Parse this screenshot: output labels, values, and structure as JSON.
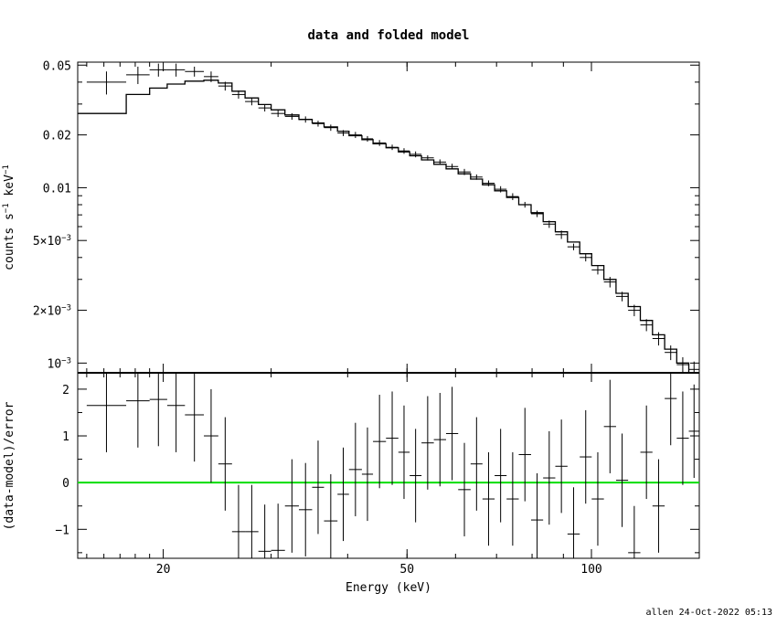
{
  "footer_text": "allen 24-Oct-2022 05:13",
  "chart_data": [
    {
      "type": "step",
      "panel": "top",
      "title": "data and folded model",
      "ylabel": "counts s^-1 keV^-1",
      "xscale": "log",
      "yscale": "log",
      "xlim": [
        14.5,
        150
      ],
      "ylim": [
        0.00088,
        0.052
      ],
      "y_tick_labels": [
        "0.05",
        "0.02",
        "0.01",
        "5×10^-3",
        "2×10^-3",
        "10^-3"
      ],
      "y_tick_values": [
        0.05,
        0.02,
        0.01,
        0.005,
        0.002,
        0.001
      ],
      "series": [
        {
          "kind": "data",
          "bins": [
            [
              15.0,
              17.4,
              0.04,
              0.006
            ],
            [
              17.4,
              19.0,
              0.044,
              0.005
            ],
            [
              19.0,
              20.3,
              0.047,
              0.004
            ],
            [
              20.3,
              21.7,
              0.047,
              0.004
            ],
            [
              21.7,
              23.3,
              0.046,
              0.003
            ],
            [
              23.3,
              24.6,
              0.043,
              0.003
            ],
            [
              24.6,
              25.9,
              0.038,
              0.0022
            ],
            [
              25.9,
              27.2,
              0.034,
              0.0018
            ],
            [
              27.2,
              28.6,
              0.031,
              0.0015
            ],
            [
              28.6,
              30.0,
              0.0285,
              0.0013
            ],
            [
              30.0,
              31.6,
              0.0265,
              0.0012
            ],
            [
              31.6,
              33.3,
              0.0255,
              0.0011
            ],
            [
              33.3,
              35.0,
              0.0245,
              0.001
            ],
            [
              35.0,
              36.6,
              0.0232,
              0.0009
            ],
            [
              36.6,
              38.5,
              0.022,
              0.0009
            ],
            [
              38.5,
              40.2,
              0.0205,
              0.0008
            ],
            [
              40.2,
              42.2,
              0.02,
              0.0008
            ],
            [
              42.2,
              44.0,
              0.019,
              0.0007
            ],
            [
              44.0,
              46.2,
              0.018,
              0.0007
            ],
            [
              46.2,
              48.4,
              0.017,
              0.0006
            ],
            [
              48.4,
              50.5,
              0.0162,
              0.0006
            ],
            [
              50.5,
              52.8,
              0.0155,
              0.0006
            ],
            [
              52.8,
              55.3,
              0.0148,
              0.0005
            ],
            [
              55.3,
              57.9,
              0.014,
              0.0005
            ],
            [
              57.9,
              60.6,
              0.0132,
              0.0005
            ],
            [
              60.6,
              63.5,
              0.0123,
              0.0005
            ],
            [
              63.5,
              66.4,
              0.0115,
              0.0004
            ],
            [
              66.4,
              69.5,
              0.0106,
              0.0004
            ],
            [
              69.5,
              72.7,
              0.0098,
              0.0004
            ],
            [
              72.7,
              76.1,
              0.0089,
              0.0004
            ],
            [
              76.1,
              79.7,
              0.008,
              0.0003
            ],
            [
              79.7,
              83.4,
              0.0071,
              0.0003
            ],
            [
              83.4,
              87.3,
              0.0062,
              0.0003
            ],
            [
              87.3,
              91.4,
              0.0054,
              0.0003
            ],
            [
              91.4,
              95.7,
              0.0046,
              0.0002
            ],
            [
              95.7,
              100.1,
              0.004,
              0.0002
            ],
            [
              100.1,
              104.8,
              0.0034,
              0.0002
            ],
            [
              104.8,
              109.7,
              0.0029,
              0.0002
            ],
            [
              109.7,
              114.8,
              0.0024,
              0.00015
            ],
            [
              114.8,
              120.2,
              0.002,
              0.00015
            ],
            [
              120.2,
              125.8,
              0.00165,
              0.00013
            ],
            [
              125.8,
              131.7,
              0.00138,
              0.00012
            ],
            [
              131.7,
              137.8,
              0.00115,
              0.00011
            ],
            [
              137.8,
              144.2,
              0.00098,
              0.0001
            ],
            [
              144.2,
              150.0,
              0.00092,
              0.0001
            ]
          ]
        },
        {
          "kind": "model",
          "bins": [
            [
              14.5,
              17.4,
              0.0265
            ],
            [
              17.4,
              19.0,
              0.034
            ],
            [
              19.0,
              20.3,
              0.037
            ],
            [
              20.3,
              21.7,
              0.039
            ],
            [
              21.7,
              23.3,
              0.0405
            ],
            [
              23.3,
              24.6,
              0.041
            ],
            [
              24.6,
              25.9,
              0.0395
            ],
            [
              25.9,
              27.2,
              0.0355
            ],
            [
              27.2,
              28.6,
              0.0325
            ],
            [
              28.6,
              30.0,
              0.0298
            ],
            [
              30.0,
              31.6,
              0.0278
            ],
            [
              31.6,
              33.3,
              0.026
            ],
            [
              33.3,
              35.0,
              0.0245
            ],
            [
              35.0,
              36.6,
              0.0234
            ],
            [
              36.6,
              38.5,
              0.0222
            ],
            [
              38.5,
              40.2,
              0.021
            ],
            [
              40.2,
              42.2,
              0.0198
            ],
            [
              42.2,
              44.0,
              0.0188
            ],
            [
              44.0,
              46.2,
              0.0178
            ],
            [
              46.2,
              48.4,
              0.0169
            ],
            [
              48.4,
              50.5,
              0.016
            ],
            [
              50.5,
              52.8,
              0.0152
            ],
            [
              52.8,
              55.3,
              0.0144
            ],
            [
              55.3,
              57.9,
              0.0136
            ],
            [
              57.9,
              60.6,
              0.0128
            ],
            [
              60.6,
              63.5,
              0.012
            ],
            [
              63.5,
              66.4,
              0.0112
            ],
            [
              66.4,
              69.5,
              0.0104
            ],
            [
              69.5,
              72.7,
              0.0096
            ],
            [
              72.7,
              76.1,
              0.0088
            ],
            [
              76.1,
              79.7,
              0.008
            ],
            [
              79.7,
              83.4,
              0.0072
            ],
            [
              83.4,
              87.3,
              0.0064
            ],
            [
              87.3,
              91.4,
              0.0056
            ],
            [
              91.4,
              95.7,
              0.0049
            ],
            [
              95.7,
              100.1,
              0.0042
            ],
            [
              100.1,
              104.8,
              0.0036
            ],
            [
              104.8,
              109.7,
              0.003
            ],
            [
              109.7,
              114.8,
              0.0025
            ],
            [
              114.8,
              120.2,
              0.0021
            ],
            [
              120.2,
              125.8,
              0.00175
            ],
            [
              125.8,
              131.7,
              0.00145
            ],
            [
              131.7,
              137.8,
              0.0012
            ],
            [
              137.8,
              144.2,
              0.001
            ],
            [
              144.2,
              150.0,
              0.00088
            ]
          ]
        }
      ]
    },
    {
      "type": "scatter",
      "panel": "bottom",
      "xlabel": "Energy (keV)",
      "ylabel": "(data-model)/error",
      "xscale": "log",
      "xlim": [
        14.5,
        150
      ],
      "ylim": [
        -1.62,
        2.35
      ],
      "y_tick_values": [
        -1,
        0,
        1,
        2
      ],
      "y_tick_labels": [
        "−1",
        "0",
        "1",
        "2"
      ],
      "x_tick_values": [
        20,
        50,
        100
      ],
      "x_tick_labels": [
        "20",
        "50",
        "100"
      ],
      "zero_line_color": "#00dd00",
      "residuals": [
        [
          15.0,
          17.4,
          1.65,
          1.0
        ],
        [
          17.4,
          19.0,
          1.75,
          1.0
        ],
        [
          19.0,
          20.3,
          1.78,
          1.0
        ],
        [
          20.3,
          21.7,
          1.65,
          1.0
        ],
        [
          21.7,
          23.3,
          1.45,
          1.0
        ],
        [
          23.3,
          24.6,
          1.0,
          1.0
        ],
        [
          24.6,
          25.9,
          0.4,
          1.0
        ],
        [
          25.9,
          27.2,
          -1.05,
          1.0
        ],
        [
          27.2,
          28.6,
          -1.05,
          1.0
        ],
        [
          28.6,
          30.0,
          -1.47,
          1.0
        ],
        [
          30.0,
          31.6,
          -1.45,
          1.0
        ],
        [
          31.6,
          33.3,
          -0.5,
          1.0
        ],
        [
          33.3,
          35.0,
          -0.58,
          1.0
        ],
        [
          35.0,
          36.6,
          -0.1,
          1.0
        ],
        [
          36.6,
          38.5,
          -0.82,
          1.0
        ],
        [
          38.5,
          40.2,
          -0.25,
          1.0
        ],
        [
          40.2,
          42.2,
          0.28,
          1.0
        ],
        [
          42.2,
          44.0,
          0.18,
          1.0
        ],
        [
          44.0,
          46.2,
          0.88,
          1.0
        ],
        [
          46.2,
          48.4,
          0.95,
          1.0
        ],
        [
          48.4,
          50.5,
          0.65,
          1.0
        ],
        [
          50.5,
          52.8,
          0.15,
          1.0
        ],
        [
          52.8,
          55.3,
          0.85,
          1.0
        ],
        [
          55.3,
          57.9,
          0.92,
          1.0
        ],
        [
          57.9,
          60.6,
          1.05,
          1.0
        ],
        [
          60.6,
          63.5,
          -0.15,
          1.0
        ],
        [
          63.5,
          66.4,
          0.4,
          1.0
        ],
        [
          66.4,
          69.5,
          -0.35,
          1.0
        ],
        [
          69.5,
          72.7,
          0.15,
          1.0
        ],
        [
          72.7,
          76.1,
          -0.35,
          1.0
        ],
        [
          76.1,
          79.7,
          0.6,
          1.0
        ],
        [
          79.7,
          83.4,
          -0.8,
          1.0
        ],
        [
          83.4,
          87.3,
          0.1,
          1.0
        ],
        [
          87.3,
          91.4,
          0.35,
          1.0
        ],
        [
          91.4,
          95.7,
          -1.1,
          1.0
        ],
        [
          95.7,
          100.1,
          0.55,
          1.0
        ],
        [
          100.1,
          104.8,
          -0.35,
          1.0
        ],
        [
          104.8,
          109.7,
          1.2,
          1.0
        ],
        [
          109.7,
          114.8,
          0.05,
          1.0
        ],
        [
          114.8,
          120.2,
          -1.5,
          1.0
        ],
        [
          120.2,
          125.8,
          0.65,
          1.0
        ],
        [
          125.8,
          131.7,
          -0.5,
          1.0
        ],
        [
          131.7,
          137.8,
          1.8,
          1.0
        ],
        [
          137.8,
          144.2,
          0.95,
          1.0
        ],
        [
          144.2,
          150.0,
          1.1,
          1.0
        ]
      ]
    }
  ]
}
